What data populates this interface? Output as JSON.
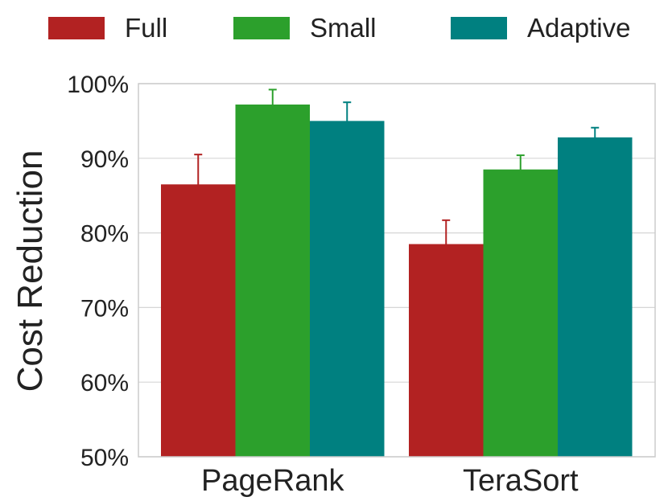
{
  "chart_data": {
    "type": "bar",
    "categories": [
      "PageRank",
      "TeraSort"
    ],
    "series": [
      {
        "name": "Full",
        "color": "#b22222",
        "values": [
          86.5,
          78.5
        ],
        "error": [
          4.0,
          3.2
        ]
      },
      {
        "name": "Small",
        "color": "#2ca02c",
        "values": [
          97.2,
          88.5
        ],
        "error": [
          2.0,
          1.9
        ]
      },
      {
        "name": "Adaptive",
        "color": "#008080",
        "values": [
          95.0,
          92.8
        ],
        "error": [
          2.5,
          1.3
        ]
      }
    ],
    "title": "",
    "xlabel": "",
    "ylabel": "Cost Reduction",
    "ylim": [
      50,
      100
    ],
    "yticks": [
      50,
      60,
      70,
      80,
      90,
      100
    ],
    "ytick_labels": [
      "50%",
      "60%",
      "70%",
      "80%",
      "90%",
      "100%"
    ],
    "grid": true,
    "legend_position": "top"
  }
}
